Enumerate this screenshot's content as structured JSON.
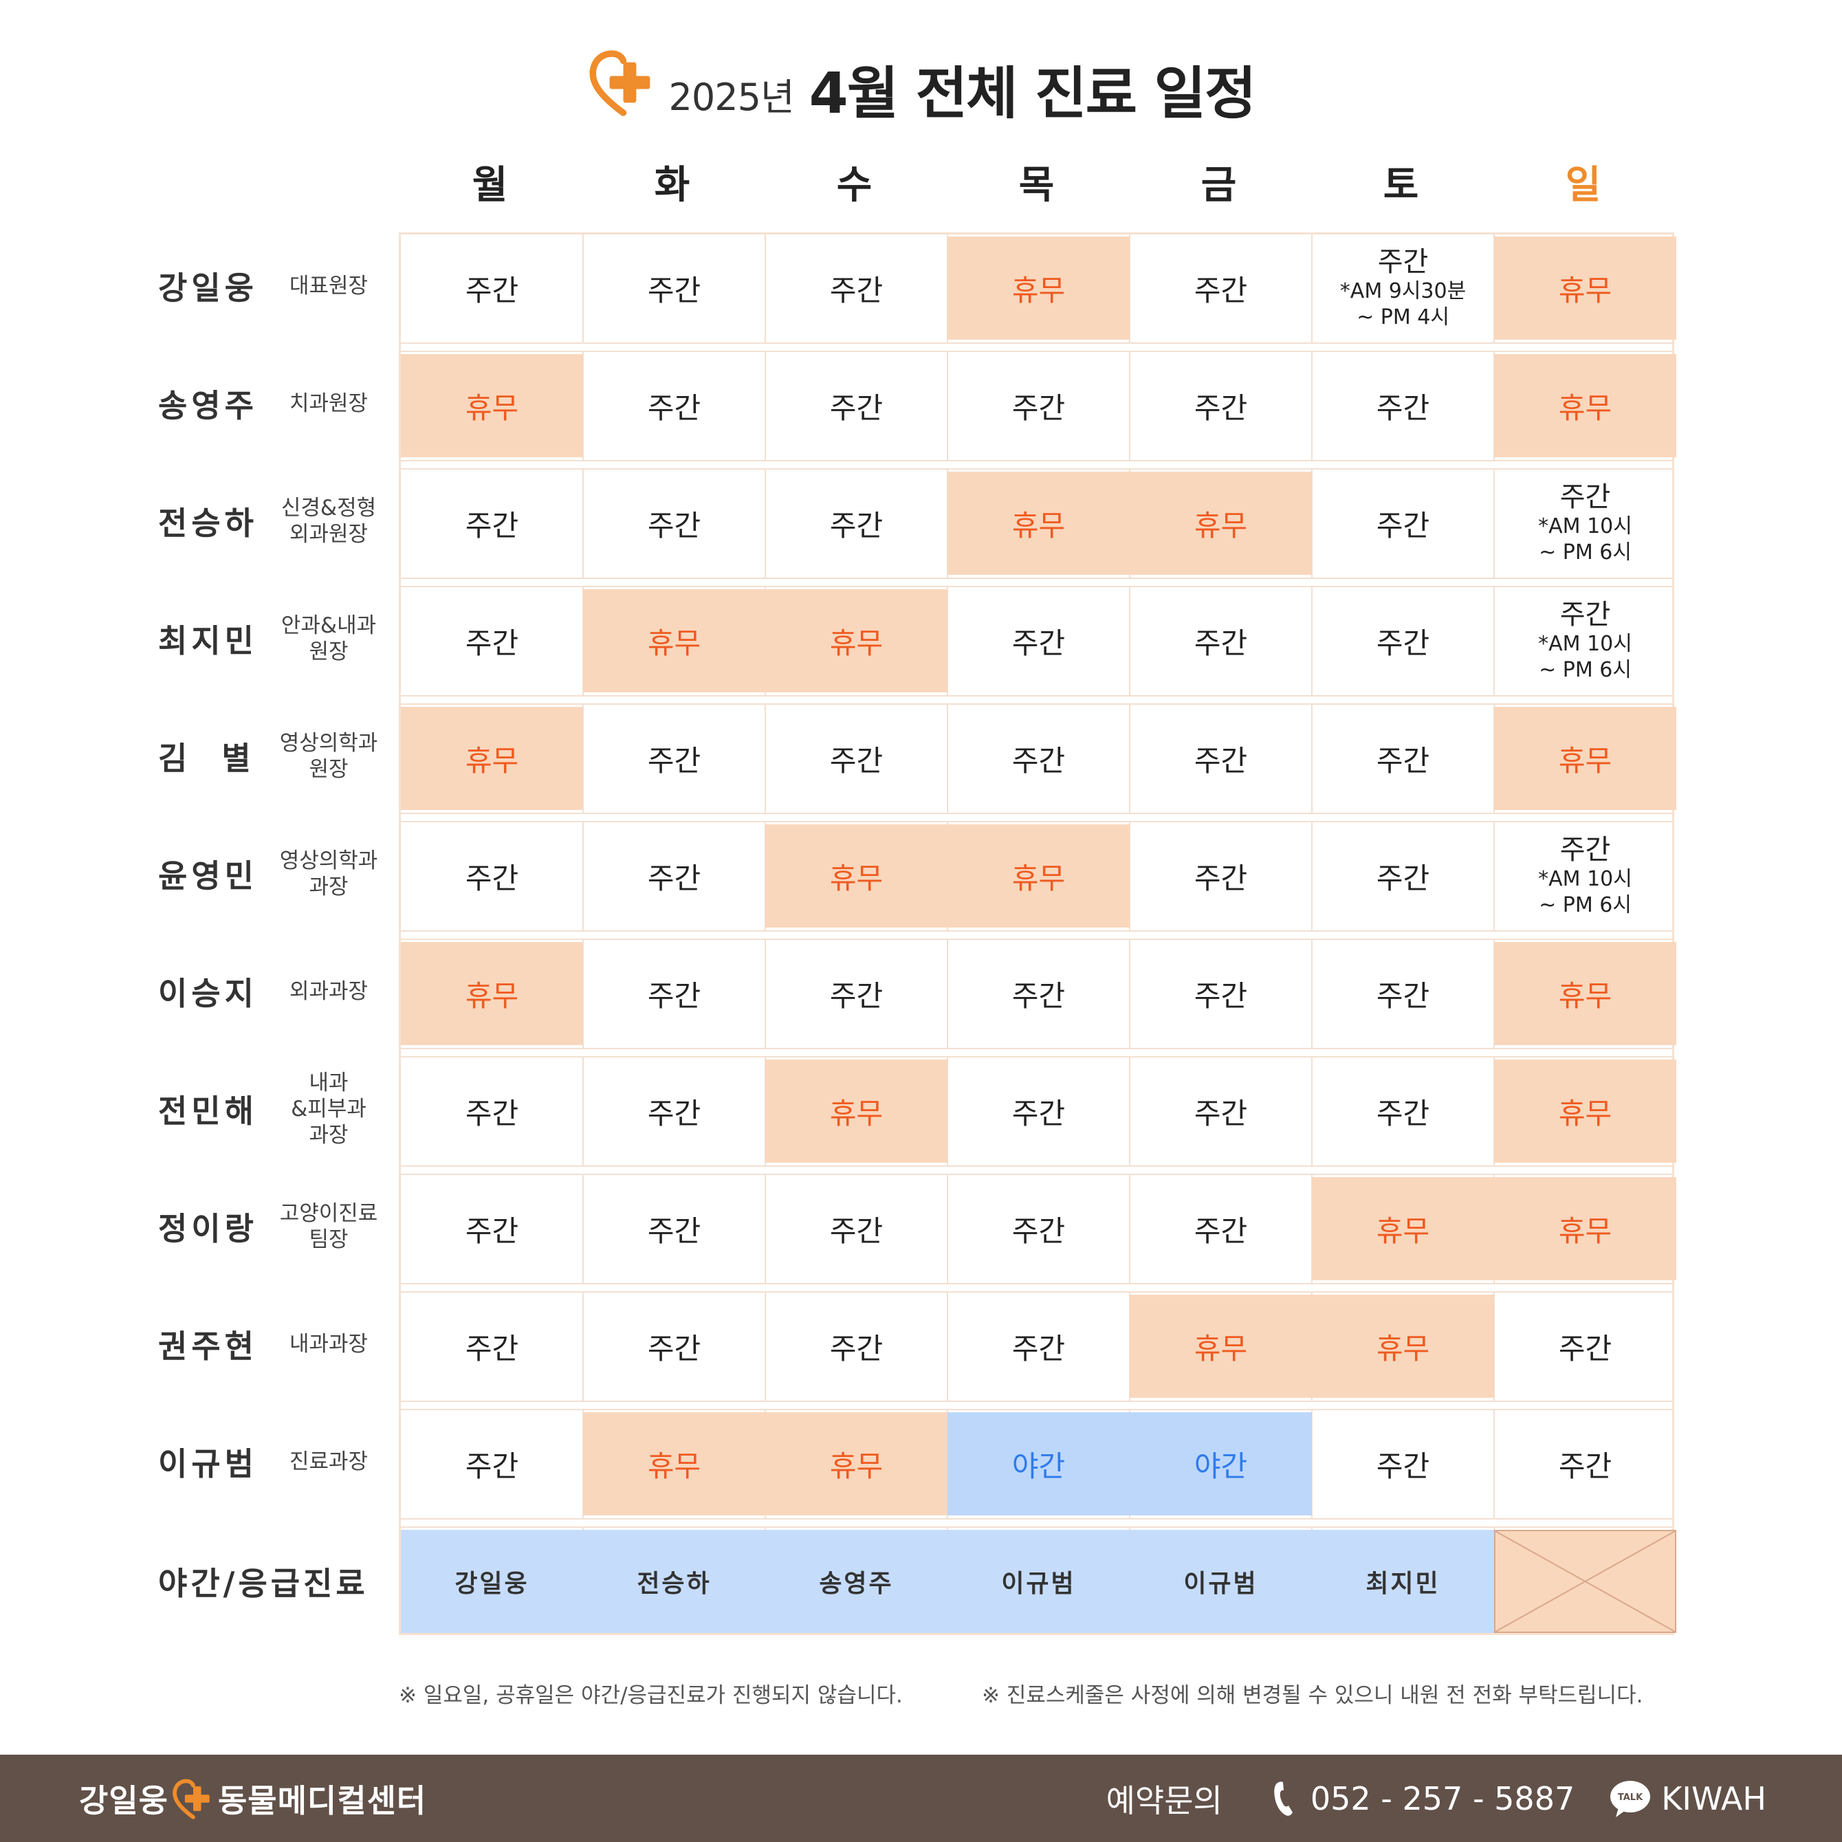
{
  "header": {
    "year": "2025년",
    "title": "4월 전체 진료 일정"
  },
  "days": [
    "월",
    "화",
    "수",
    "목",
    "금",
    "토",
    "일"
  ],
  "doctors": [
    {
      "name": "강일웅",
      "title_lines": [
        "대표원장"
      ],
      "cells": [
        {
          "type": "day",
          "label": "주간"
        },
        {
          "type": "day",
          "label": "주간"
        },
        {
          "type": "day",
          "label": "주간"
        },
        {
          "type": "off",
          "label": "휴무"
        },
        {
          "type": "day",
          "label": "주간"
        },
        {
          "type": "day",
          "label": "주간",
          "sub": [
            "*AM 9시30분",
            "~ PM 4시"
          ]
        },
        {
          "type": "off",
          "label": "휴무"
        }
      ]
    },
    {
      "name": "송영주",
      "title_lines": [
        "치과원장"
      ],
      "cells": [
        {
          "type": "off",
          "label": "휴무"
        },
        {
          "type": "day",
          "label": "주간"
        },
        {
          "type": "day",
          "label": "주간"
        },
        {
          "type": "day",
          "label": "주간"
        },
        {
          "type": "day",
          "label": "주간"
        },
        {
          "type": "day",
          "label": "주간"
        },
        {
          "type": "off",
          "label": "휴무"
        }
      ]
    },
    {
      "name": "전승하",
      "title_lines": [
        "신경&정형",
        "외과원장"
      ],
      "cells": [
        {
          "type": "day",
          "label": "주간"
        },
        {
          "type": "day",
          "label": "주간"
        },
        {
          "type": "day",
          "label": "주간"
        },
        {
          "type": "off",
          "label": "휴무"
        },
        {
          "type": "off",
          "label": "휴무"
        },
        {
          "type": "day",
          "label": "주간"
        },
        {
          "type": "day",
          "label": "주간",
          "sub": [
            "*AM 10시",
            "~ PM 6시"
          ]
        }
      ]
    },
    {
      "name": "최지민",
      "title_lines": [
        "안과&내과",
        "원장"
      ],
      "cells": [
        {
          "type": "day",
          "label": "주간"
        },
        {
          "type": "off",
          "label": "휴무"
        },
        {
          "type": "off",
          "label": "휴무"
        },
        {
          "type": "day",
          "label": "주간"
        },
        {
          "type": "day",
          "label": "주간"
        },
        {
          "type": "day",
          "label": "주간"
        },
        {
          "type": "day",
          "label": "주간",
          "sub": [
            "*AM 10시",
            "~ PM 6시"
          ]
        }
      ]
    },
    {
      "name": "김  별",
      "title_lines": [
        "영상의학과",
        "원장"
      ],
      "cells": [
        {
          "type": "off",
          "label": "휴무"
        },
        {
          "type": "day",
          "label": "주간"
        },
        {
          "type": "day",
          "label": "주간"
        },
        {
          "type": "day",
          "label": "주간"
        },
        {
          "type": "day",
          "label": "주간"
        },
        {
          "type": "day",
          "label": "주간"
        },
        {
          "type": "off",
          "label": "휴무"
        }
      ]
    },
    {
      "name": "윤영민",
      "title_lines": [
        "영상의학과",
        "과장"
      ],
      "cells": [
        {
          "type": "day",
          "label": "주간"
        },
        {
          "type": "day",
          "label": "주간"
        },
        {
          "type": "off",
          "label": "휴무"
        },
        {
          "type": "off",
          "label": "휴무"
        },
        {
          "type": "day",
          "label": "주간"
        },
        {
          "type": "day",
          "label": "주간"
        },
        {
          "type": "day",
          "label": "주간",
          "sub": [
            "*AM 10시",
            "~ PM 6시"
          ]
        }
      ]
    },
    {
      "name": "이승지",
      "title_lines": [
        "외과과장"
      ],
      "cells": [
        {
          "type": "off",
          "label": "휴무"
        },
        {
          "type": "day",
          "label": "주간"
        },
        {
          "type": "day",
          "label": "주간"
        },
        {
          "type": "day",
          "label": "주간"
        },
        {
          "type": "day",
          "label": "주간"
        },
        {
          "type": "day",
          "label": "주간"
        },
        {
          "type": "off",
          "label": "휴무"
        }
      ]
    },
    {
      "name": "전민해",
      "title_lines": [
        "내과",
        "&피부과",
        "과장"
      ],
      "cells": [
        {
          "type": "day",
          "label": "주간"
        },
        {
          "type": "day",
          "label": "주간"
        },
        {
          "type": "off",
          "label": "휴무"
        },
        {
          "type": "day",
          "label": "주간"
        },
        {
          "type": "day",
          "label": "주간"
        },
        {
          "type": "day",
          "label": "주간"
        },
        {
          "type": "off",
          "label": "휴무"
        }
      ]
    },
    {
      "name": "정이랑",
      "title_lines": [
        "고양이진료",
        "팀장"
      ],
      "cells": [
        {
          "type": "day",
          "label": "주간"
        },
        {
          "type": "day",
          "label": "주간"
        },
        {
          "type": "day",
          "label": "주간"
        },
        {
          "type": "day",
          "label": "주간"
        },
        {
          "type": "day",
          "label": "주간"
        },
        {
          "type": "off",
          "label": "휴무"
        },
        {
          "type": "off",
          "label": "휴무"
        }
      ]
    },
    {
      "name": "권주현",
      "title_lines": [
        "내과과장"
      ],
      "cells": [
        {
          "type": "day",
          "label": "주간"
        },
        {
          "type": "day",
          "label": "주간"
        },
        {
          "type": "day",
          "label": "주간"
        },
        {
          "type": "day",
          "label": "주간"
        },
        {
          "type": "off",
          "label": "휴무"
        },
        {
          "type": "off",
          "label": "휴무"
        },
        {
          "type": "day",
          "label": "주간"
        }
      ]
    },
    {
      "name": "이규범",
      "title_lines": [
        "진료과장"
      ],
      "cells": [
        {
          "type": "day",
          "label": "주간"
        },
        {
          "type": "off",
          "label": "휴무"
        },
        {
          "type": "off",
          "label": "휴무"
        },
        {
          "type": "night",
          "label": "야간"
        },
        {
          "type": "night",
          "label": "야간"
        },
        {
          "type": "day",
          "label": "주간"
        },
        {
          "type": "day",
          "label": "주간"
        }
      ]
    }
  ],
  "emergency": {
    "label": "야간/응급진료",
    "cells": [
      "강일웅",
      "전승하",
      "송영주",
      "이규범",
      "이규범",
      "최지민",
      ""
    ]
  },
  "notes": [
    "※ 일요일, 공휴일은 야간/응급진료가 진행되지 않습니다.",
    "※ 진료스케줄은 사정에 의해 변경될 수 있으니 내원 전 전화 부탁드립니다."
  ],
  "footer": {
    "brand_left": "강일웅",
    "brand_right": "동물메디컬센터",
    "contact_label": "예약문의",
    "phone": "052 - 257 - 5887",
    "talk_badge": "TALK",
    "kakao_id": "KIWAH"
  },
  "colors": {
    "accent": "#ef8c2c",
    "off_bg": "#f9d7bd",
    "off_text": "#ef5a1f",
    "night_bg": "#bdd7fb",
    "night_text": "#2f7bea",
    "footer_bg": "#615149"
  },
  "icons": {
    "logo": "heart-plus-icon",
    "phone": "phone-icon",
    "talk": "kakaotalk-icon"
  }
}
